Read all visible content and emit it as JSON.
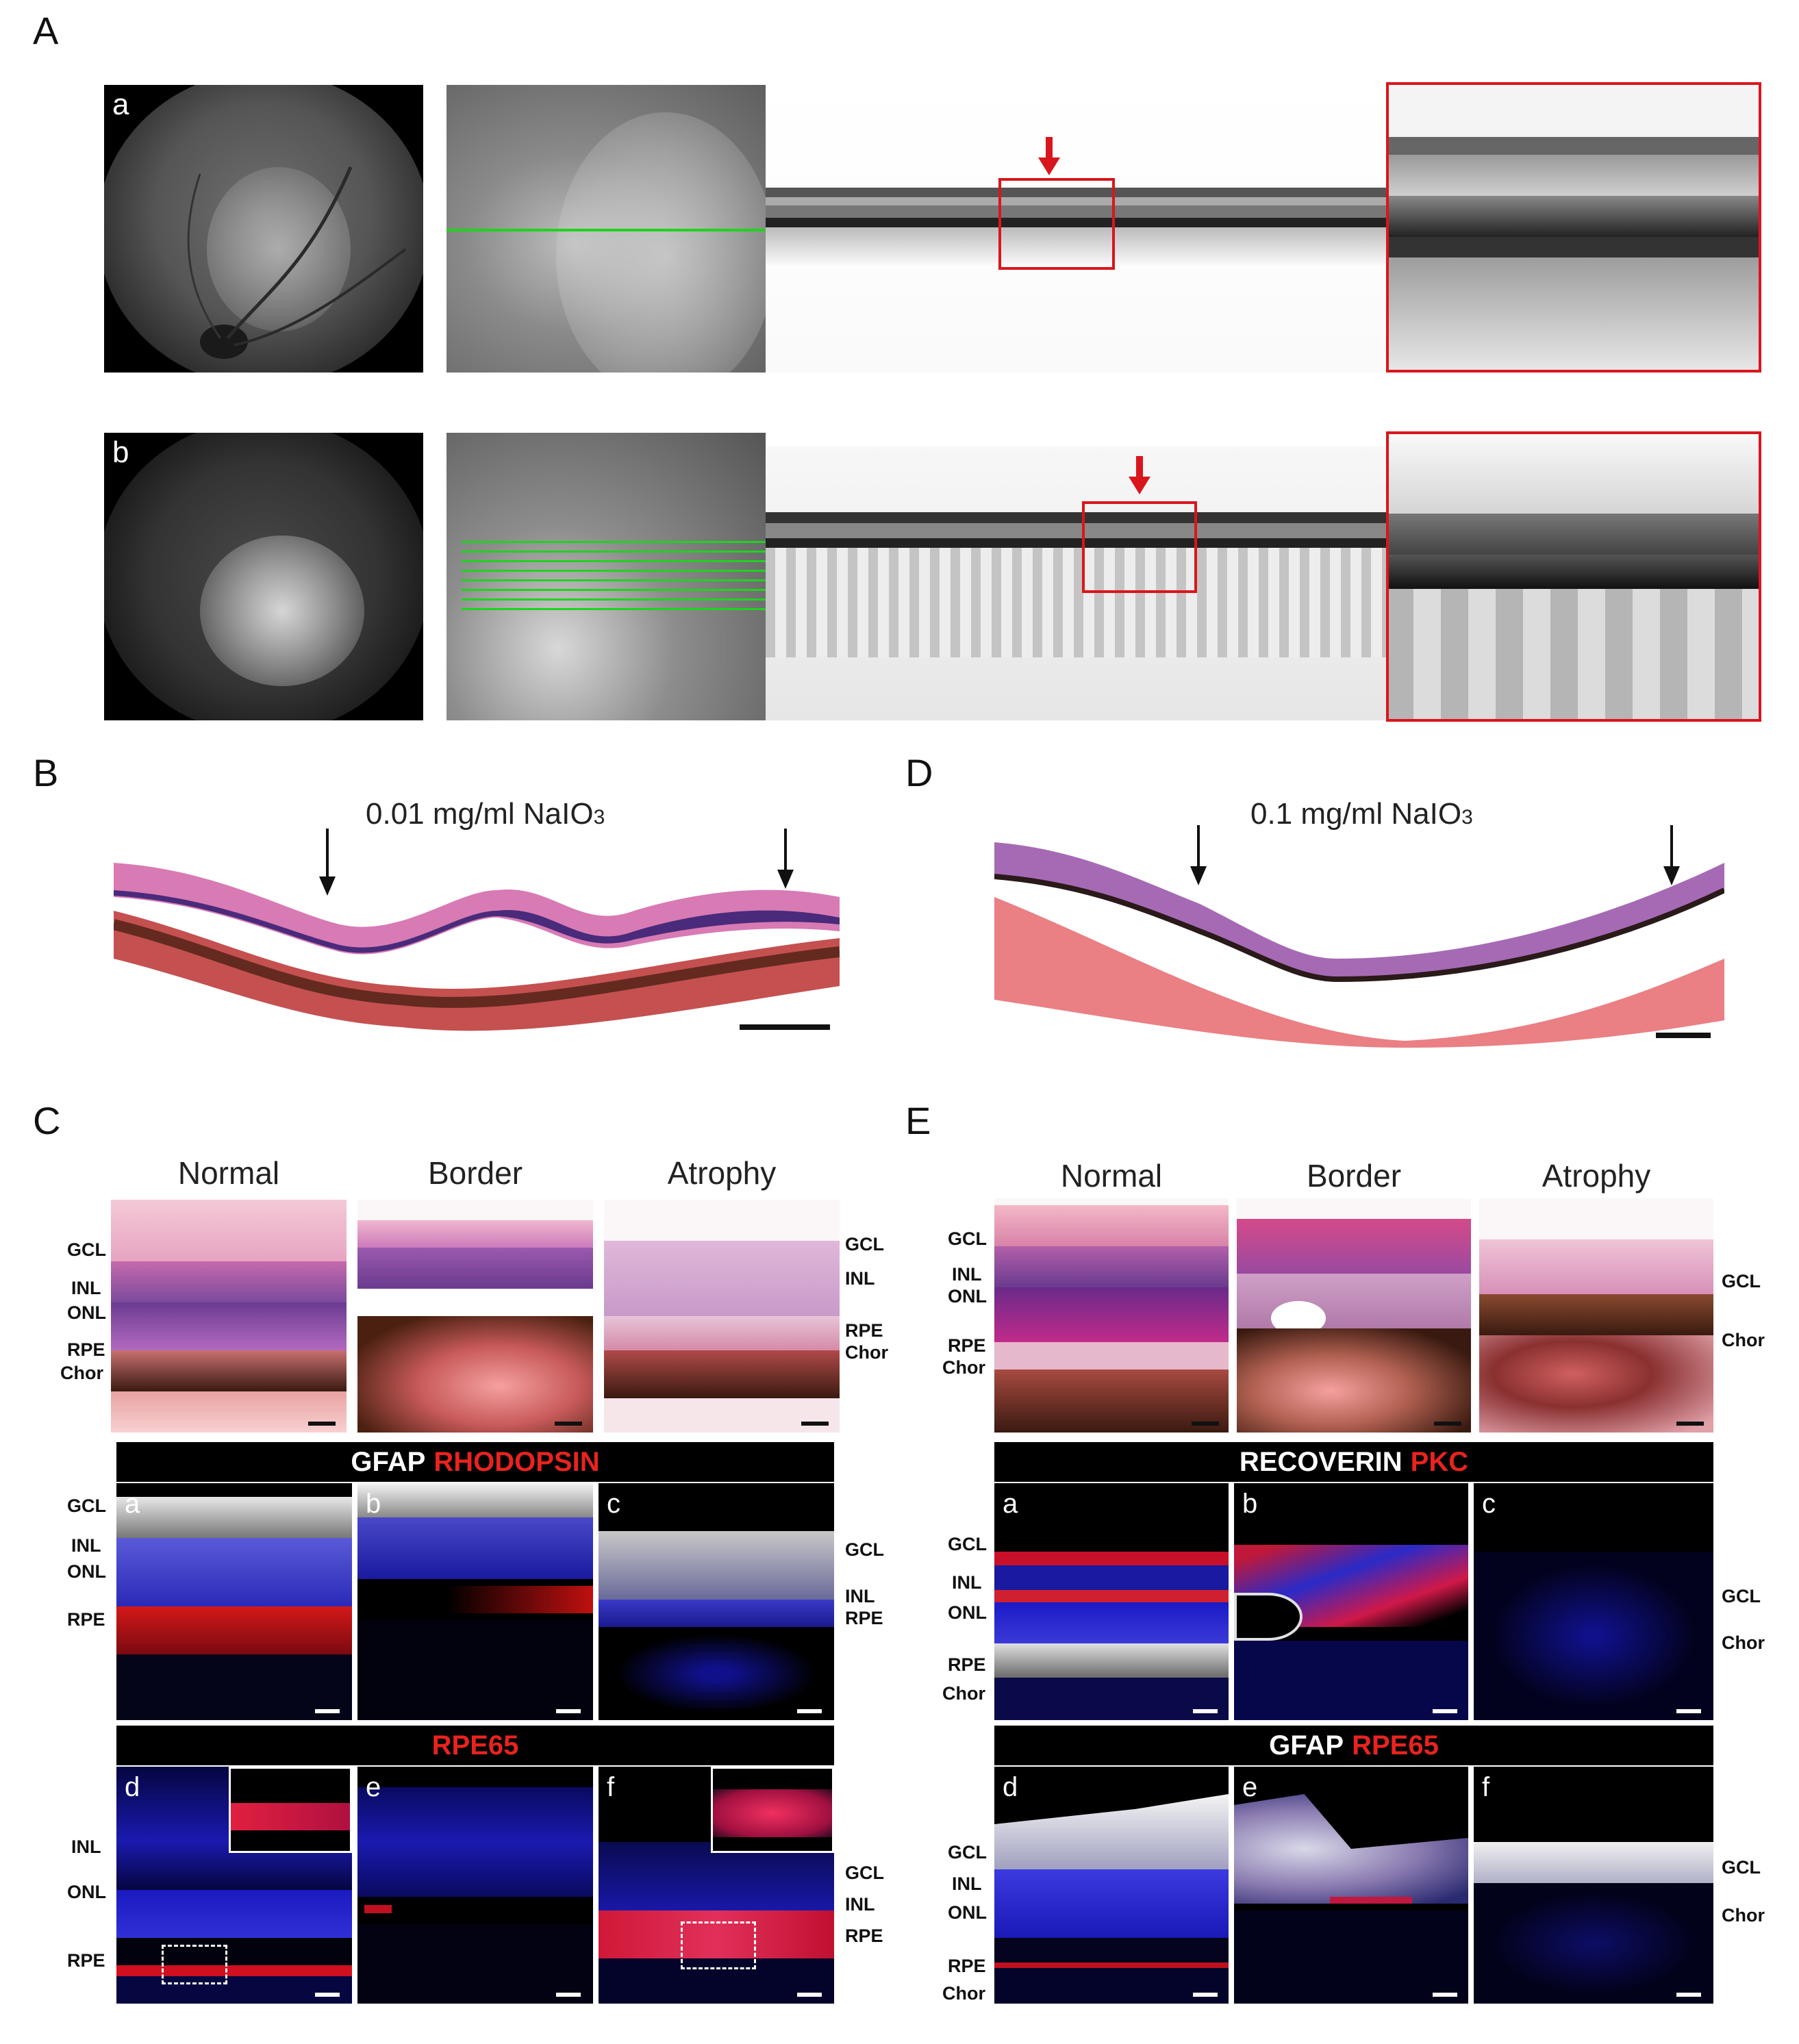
{
  "panels": {
    "A": {
      "label": "A",
      "row_a": "a",
      "row_b": "b"
    },
    "B": {
      "label": "B",
      "condition": "0.01 mg/ml NaIO",
      "condition_sub": "3"
    },
    "D": {
      "label": "D",
      "condition": "0.1 mg/ml NaIO",
      "condition_sub": "3"
    },
    "C": {
      "label": "C",
      "columns": [
        "Normal",
        "Border",
        "Atrophy"
      ],
      "he_layers_left": [
        "GCL",
        "INL",
        "ONL",
        "RPE",
        "Chor"
      ],
      "he_layers_right": [
        "GCL",
        "INL",
        "RPE",
        "Chor"
      ],
      "stain1": {
        "white": "GFAP",
        "red": "RHODOPSIN"
      },
      "stain2": {
        "red": "RPE65"
      },
      "if_layers_left_1": [
        "GCL",
        "INL",
        "ONL",
        "RPE"
      ],
      "if_layers_right_1": [
        "GCL",
        "INL",
        "RPE"
      ],
      "if_layers_left_2": [
        "INL",
        "ONL",
        "RPE"
      ],
      "if_layers_right_2": [
        "GCL",
        "INL",
        "RPE"
      ],
      "subpanels": [
        "a",
        "b",
        "c",
        "d",
        "e",
        "f"
      ]
    },
    "E": {
      "label": "E",
      "columns": [
        "Normal",
        "Border",
        "Atrophy"
      ],
      "he_layers_left": [
        "GCL",
        "INL",
        "ONL",
        "RPE",
        "Chor"
      ],
      "he_layers_right": [
        "GCL",
        "Chor"
      ],
      "stain1": {
        "white": "RECOVERIN",
        "red": "PKC"
      },
      "stain2": {
        "white": "GFAP",
        "red": "RPE65"
      },
      "if_layers_left_1": [
        "GCL",
        "INL",
        "ONL",
        "RPE",
        "Chor"
      ],
      "if_layers_right_1": [
        "GCL",
        "Chor"
      ],
      "if_layers_left_2": [
        "GCL",
        "INL",
        "ONL",
        "RPE",
        "Chor"
      ],
      "if_layers_right_2": [
        "GCL",
        "Chor"
      ],
      "subpanels": [
        "a",
        "b",
        "c",
        "d",
        "e",
        "f"
      ]
    }
  },
  "colors": {
    "red_accent": "#d9161c",
    "dapi_blue": "#1a22c8",
    "he_pink": "#d9669e",
    "he_purple": "#5a3a8a"
  }
}
